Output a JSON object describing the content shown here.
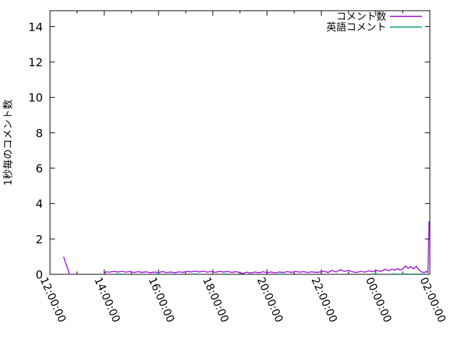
{
  "chart_data": {
    "type": "line",
    "title": "",
    "xlabel": "",
    "ylabel": "1秒毎のコメント数",
    "colors": {
      "background": "#ffffff",
      "axis": "#000000"
    },
    "x_axis": {
      "unit": "time",
      "start_label": "12:00:00",
      "end_label": "02:00:00",
      "span_hours": 14,
      "major_tick_every_hours": 2,
      "minor_tick_every_hours": 1,
      "tick_label_rotation_deg": 66,
      "tick_labels": [
        "12:00:00",
        "14:00:00",
        "16:00:00",
        "18:00:00",
        "20:00:00",
        "22:00:00",
        "00:00:00",
        "02:00:00"
      ],
      "tick_label_hours": [
        0,
        2,
        4,
        6,
        8,
        10,
        12,
        14
      ]
    },
    "y_axis": {
      "min": 0,
      "max": 14.9,
      "ticks": [
        0,
        2,
        4,
        6,
        8,
        10,
        12,
        14
      ],
      "grid": false
    },
    "legend": {
      "position": "top-right-inside",
      "box": false
    },
    "series": [
      {
        "id": "comments",
        "name": "コメント数",
        "color": "#9400d3",
        "points": [
          [
            0.5,
            1.0
          ],
          [
            0.72,
            0.0
          ],
          [
            0.78,
            0.0
          ],
          null,
          [
            2.0,
            0.0
          ],
          [
            2.05,
            0.14
          ],
          [
            2.2,
            0.12
          ],
          [
            2.35,
            0.17
          ],
          [
            2.5,
            0.13
          ],
          [
            2.65,
            0.17
          ],
          [
            2.8,
            0.12
          ],
          [
            2.95,
            0.16
          ],
          [
            3.1,
            0.1
          ],
          [
            3.25,
            0.15
          ],
          [
            3.4,
            0.11
          ],
          [
            3.55,
            0.14
          ],
          [
            3.7,
            0.09
          ],
          [
            3.85,
            0.13
          ],
          [
            4.0,
            0.1
          ],
          [
            4.15,
            0.15
          ],
          [
            4.3,
            0.1
          ],
          [
            4.45,
            0.13
          ],
          [
            4.6,
            0.09
          ],
          [
            4.75,
            0.14
          ],
          [
            4.9,
            0.11
          ],
          [
            5.05,
            0.17
          ],
          [
            5.2,
            0.13
          ],
          [
            5.35,
            0.19
          ],
          [
            5.5,
            0.13
          ],
          [
            5.65,
            0.18
          ],
          [
            5.8,
            0.12
          ],
          [
            5.95,
            0.16
          ],
          [
            6.1,
            0.11
          ],
          [
            6.25,
            0.17
          ],
          [
            6.4,
            0.13
          ],
          [
            6.55,
            0.16
          ],
          [
            6.7,
            0.11
          ],
          [
            6.85,
            0.15
          ],
          [
            7.0,
            0.09
          ],
          [
            7.1,
            0.05
          ],
          [
            7.25,
            0.12
          ],
          [
            7.4,
            0.07
          ],
          [
            7.55,
            0.13
          ],
          [
            7.7,
            0.09
          ],
          [
            7.85,
            0.14
          ],
          [
            8.0,
            0.1
          ],
          [
            8.15,
            0.13
          ],
          [
            8.3,
            0.08
          ],
          [
            8.45,
            0.13
          ],
          [
            8.6,
            0.1
          ],
          [
            8.75,
            0.15
          ],
          [
            8.9,
            0.11
          ],
          [
            9.05,
            0.16
          ],
          [
            9.2,
            0.12
          ],
          [
            9.35,
            0.15
          ],
          [
            9.5,
            0.1
          ],
          [
            9.65,
            0.14
          ],
          [
            9.8,
            0.11
          ],
          [
            9.95,
            0.13
          ],
          [
            10.1,
            0.18
          ],
          [
            10.25,
            0.1
          ],
          [
            10.4,
            0.22
          ],
          [
            10.55,
            0.13
          ],
          [
            10.7,
            0.27
          ],
          [
            10.85,
            0.17
          ],
          [
            11.0,
            0.22
          ],
          [
            11.15,
            0.14
          ],
          [
            11.3,
            0.1
          ],
          [
            11.45,
            0.17
          ],
          [
            11.6,
            0.12
          ],
          [
            11.75,
            0.2
          ],
          [
            11.9,
            0.15
          ],
          [
            12.05,
            0.22
          ],
          [
            12.2,
            0.17
          ],
          [
            12.35,
            0.28
          ],
          [
            12.5,
            0.2
          ],
          [
            12.6,
            0.3
          ],
          [
            12.7,
            0.22
          ],
          [
            12.8,
            0.33
          ],
          [
            12.9,
            0.24
          ],
          [
            13.0,
            0.3
          ],
          [
            13.1,
            0.48
          ],
          [
            13.2,
            0.33
          ],
          [
            13.3,
            0.44
          ],
          [
            13.4,
            0.3
          ],
          [
            13.5,
            0.46
          ],
          [
            13.6,
            0.24
          ],
          [
            13.7,
            0.13
          ],
          [
            13.8,
            0.1
          ],
          [
            13.88,
            0.16
          ],
          [
            13.93,
            0.1
          ],
          [
            13.97,
            3.0
          ]
        ]
      },
      {
        "id": "english-comments",
        "name": "英語コメント",
        "color": "#009e73",
        "points": [
          [
            2.4,
            0.02
          ],
          [
            2.6,
            0.02
          ],
          null,
          [
            3.85,
            0.02
          ],
          [
            4.05,
            0.02
          ],
          null,
          [
            5.25,
            0.02
          ],
          [
            5.45,
            0.02
          ],
          null,
          [
            6.35,
            0.02
          ],
          [
            6.55,
            0.02
          ],
          null,
          [
            8.4,
            0.02
          ],
          [
            8.6,
            0.02
          ],
          null,
          [
            11.85,
            0.02
          ],
          [
            12.1,
            0.02
          ],
          null,
          [
            12.55,
            0.02
          ],
          [
            12.8,
            0.02
          ],
          null,
          [
            12.95,
            0.02
          ],
          [
            13.2,
            0.02
          ],
          null,
          [
            13.3,
            0.02
          ],
          [
            13.55,
            0.02
          ],
          null,
          [
            13.65,
            0.02
          ],
          [
            13.85,
            0.02
          ]
        ]
      }
    ]
  }
}
